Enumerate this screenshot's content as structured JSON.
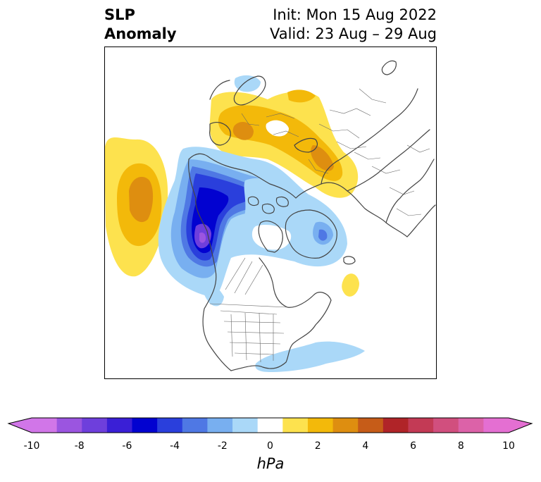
{
  "title": {
    "left_line1": "SLP",
    "left_line2": "Anomaly",
    "right_line1": "Init: Mon 15 Aug 2022",
    "right_line2": "Valid: 23 Aug – 29 Aug"
  },
  "colorbar": {
    "unit": "hPa",
    "ticks": [
      "-10",
      "-8",
      "-6",
      "-4",
      "-2",
      "0",
      "2",
      "4",
      "6",
      "8",
      "10"
    ],
    "levels": [
      -10,
      -9,
      -8,
      -7,
      -6,
      -5,
      -4,
      -3,
      -2,
      -1,
      1,
      2,
      3,
      4,
      5,
      6,
      7,
      8,
      9,
      10
    ],
    "colors": [
      "#d176e8",
      "#9b55e0",
      "#6e3fdc",
      "#3a1fd6",
      "#0202d0",
      "#2a3fdc",
      "#4f78e4",
      "#78aff0",
      "#aad8f8",
      "#ffffff",
      "#fde24e",
      "#f3b90a",
      "#de8e10",
      "#c65c18",
      "#b02428",
      "#c33a55",
      "#d14f7e",
      "#dc62a8",
      "#e46fd2"
    ],
    "extend_min_color": "#d176e8",
    "extend_max_color": "#e46fd2"
  }
}
